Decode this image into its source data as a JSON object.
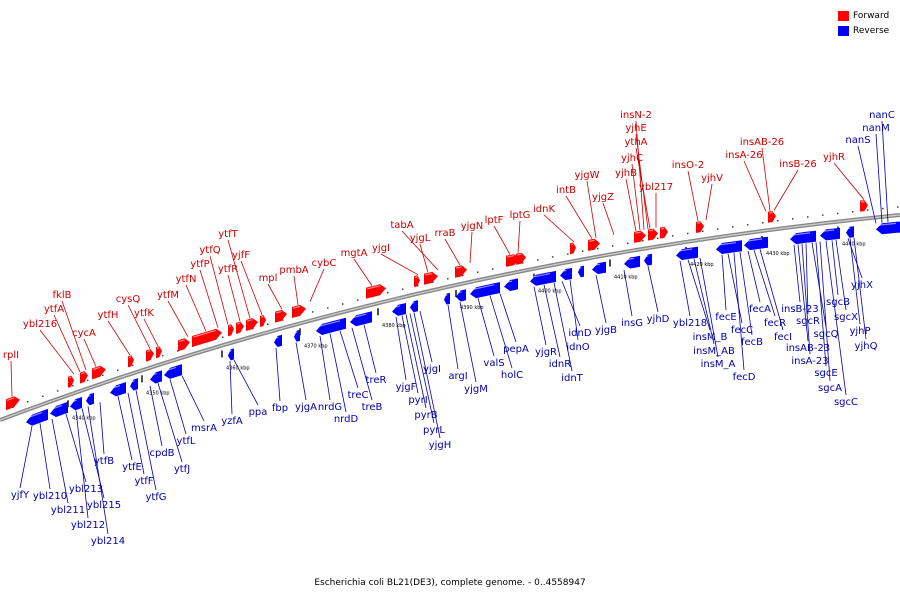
{
  "caption": "Escherichia coli BL21(DE3), complete genome. - 0..4558947",
  "legend": [
    {
      "label": "Forward",
      "color": "#ff0000"
    },
    {
      "label": "Reverse",
      "color": "#0000ff"
    }
  ],
  "colors": {
    "forward": "#ff0000",
    "reverse": "#0000ff",
    "label_forward": "#cc0000",
    "label_reverse": "#0000aa",
    "axis": "#888888"
  },
  "ticks": [
    "4340 kbp",
    "4350 kbp",
    "4360 kbp",
    "4370 kbp",
    "4380 kbp",
    "4390 kbp",
    "4400 kbp",
    "4410 kbp",
    "4420 kbp",
    "4430 kbp",
    "4440 kbp"
  ],
  "forward_genes": [
    "rplI",
    "ybl216",
    "ytfA",
    "fklB",
    "cycA",
    "ytfH",
    "cysQ",
    "ytfK",
    "ytfM",
    "ytfN",
    "ytfP",
    "ytfQ",
    "ytfR",
    "ytfT",
    "yjfF",
    "mpl",
    "pmbA",
    "cybC",
    "mgtA",
    "yjgI",
    "yjgL",
    "tabA",
    "rraB",
    "yjgN",
    "lptF",
    "lptG",
    "idnK",
    "intB",
    "yjgW",
    "yjgZ",
    "yjhB",
    "yjhC",
    "insN-2",
    "yjhE",
    "ythA",
    "ybl217",
    "insO-2",
    "yjhV",
    "insA-26",
    "insAB-26",
    "insB-26",
    "yjhR"
  ],
  "reverse_genes": [
    "yjfY",
    "ybl210",
    "ybl211",
    "ybl213",
    "ybl212",
    "ybl215",
    "ybl214",
    "ytfB",
    "ytfE",
    "ytfF",
    "ytfG",
    "cpdB",
    "ytfJ",
    "ytfL",
    "msrA",
    "yzfA",
    "ppa",
    "fbp",
    "yjgA",
    "nrdG",
    "nrdD",
    "treC",
    "treB",
    "treR",
    "yjgF",
    "pyrI",
    "pyrB",
    "pyrL",
    "yjgH",
    "yjgI",
    "argI",
    "yjgM",
    "valS",
    "holC",
    "pepA",
    "yjgR",
    "idnR",
    "idnT",
    "idnD",
    "idnO",
    "yjgB",
    "insG",
    "yjhD",
    "ybl218",
    "insM_B",
    "insM_AB",
    "insM_A",
    "fecE",
    "fecC",
    "fecD",
    "fecB",
    "fecA",
    "fecR",
    "fecI",
    "insB-23",
    "insAB-23",
    "insA-23",
    "sgcR",
    "sgcQ",
    "sgcE",
    "sgcA",
    "sgcC",
    "sgcB",
    "sgcX",
    "yjhP",
    "yjhQ",
    "yjhX",
    "nanS",
    "nanM",
    "nanC"
  ]
}
